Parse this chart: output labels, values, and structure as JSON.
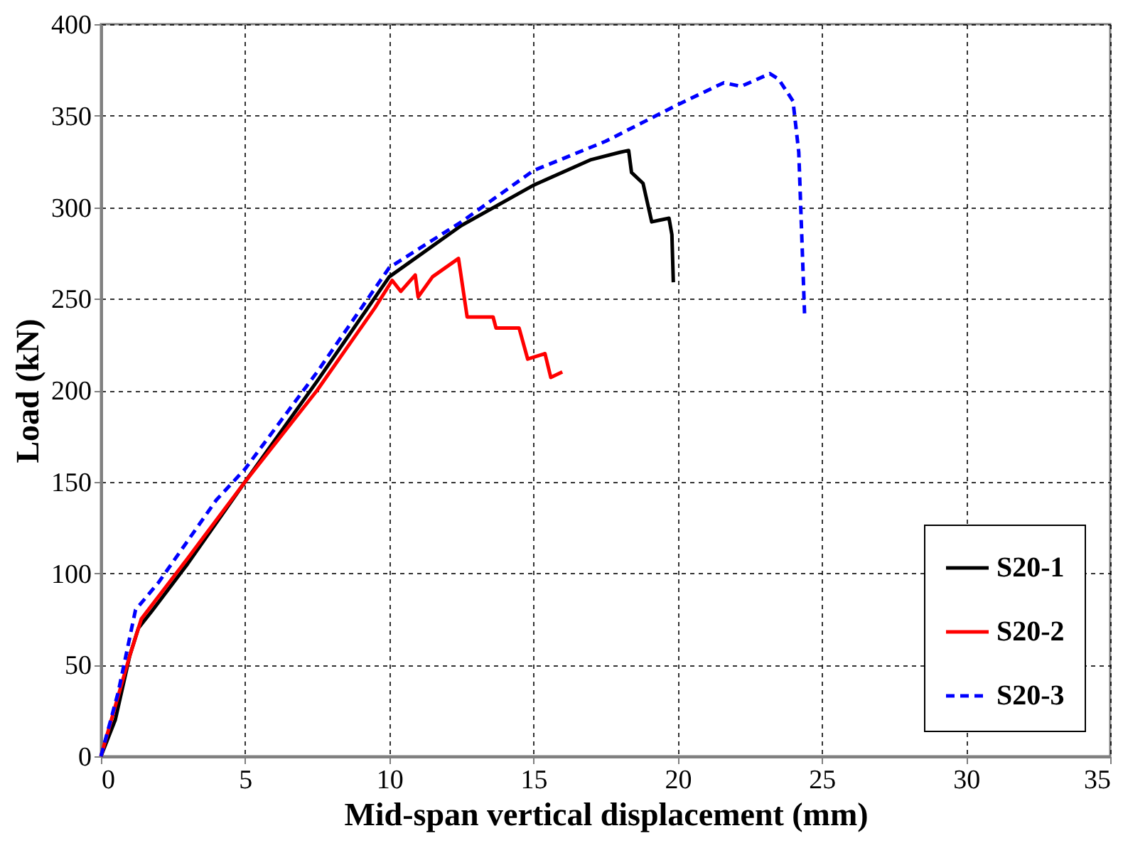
{
  "chart_data": {
    "type": "line",
    "xlabel": "Mid-span vertical displacement (mm)",
    "ylabel": "Load (kN)",
    "xlim": [
      0,
      35
    ],
    "xticks": [
      0,
      5,
      10,
      15,
      20,
      25,
      30,
      35
    ],
    "ylim": [
      0,
      400
    ],
    "yticks": [
      0,
      50,
      100,
      150,
      200,
      250,
      300,
      350,
      400
    ],
    "grid": true,
    "legend": "bottom right",
    "marker": "none",
    "series": [
      {
        "name": "S20-1",
        "color": "#000000",
        "line_style": "solid",
        "x": [
          0,
          0.5,
          1,
          1.3,
          1.8,
          3,
          5,
          7.5,
          10,
          12.5,
          15,
          17,
          18.0,
          18.3,
          18.4,
          18.8,
          19.1,
          19.4,
          19.7,
          19.8,
          19.85
        ],
        "values": [
          0,
          20,
          55,
          70,
          80,
          105,
          150,
          205,
          262,
          290,
          312,
          326,
          330,
          331,
          319,
          313,
          292,
          293,
          294,
          285,
          259
        ]
      },
      {
        "name": "S20-2",
        "color": "#ff0000",
        "line_style": "solid",
        "x": [
          0,
          1,
          1.4,
          3,
          5,
          7.5,
          9.5,
          10.1,
          10.4,
          10.9,
          11.0,
          11.5,
          12.4,
          12.7,
          13.6,
          13.7,
          14.5,
          14.8,
          15.4,
          15.6,
          16.0
        ],
        "values": [
          0,
          55,
          75,
          108,
          150,
          200,
          245,
          260,
          254,
          263,
          251,
          262,
          272,
          240,
          240,
          234,
          234,
          217,
          220,
          207,
          210
        ]
      },
      {
        "name": "S20-3",
        "color": "#0000ff",
        "line_style": "dashed",
        "x": [
          0,
          0.6,
          1.2,
          2,
          4,
          5,
          7.5,
          10,
          12.5,
          15,
          17.5,
          20,
          21.6,
          22.2,
          23.2,
          23.5,
          24.0,
          24.2,
          24.4
        ],
        "values": [
          0,
          35,
          80,
          95,
          140,
          157,
          210,
          267,
          292,
          320,
          336,
          356,
          368,
          366,
          373,
          370,
          358,
          330,
          242
        ]
      }
    ]
  }
}
